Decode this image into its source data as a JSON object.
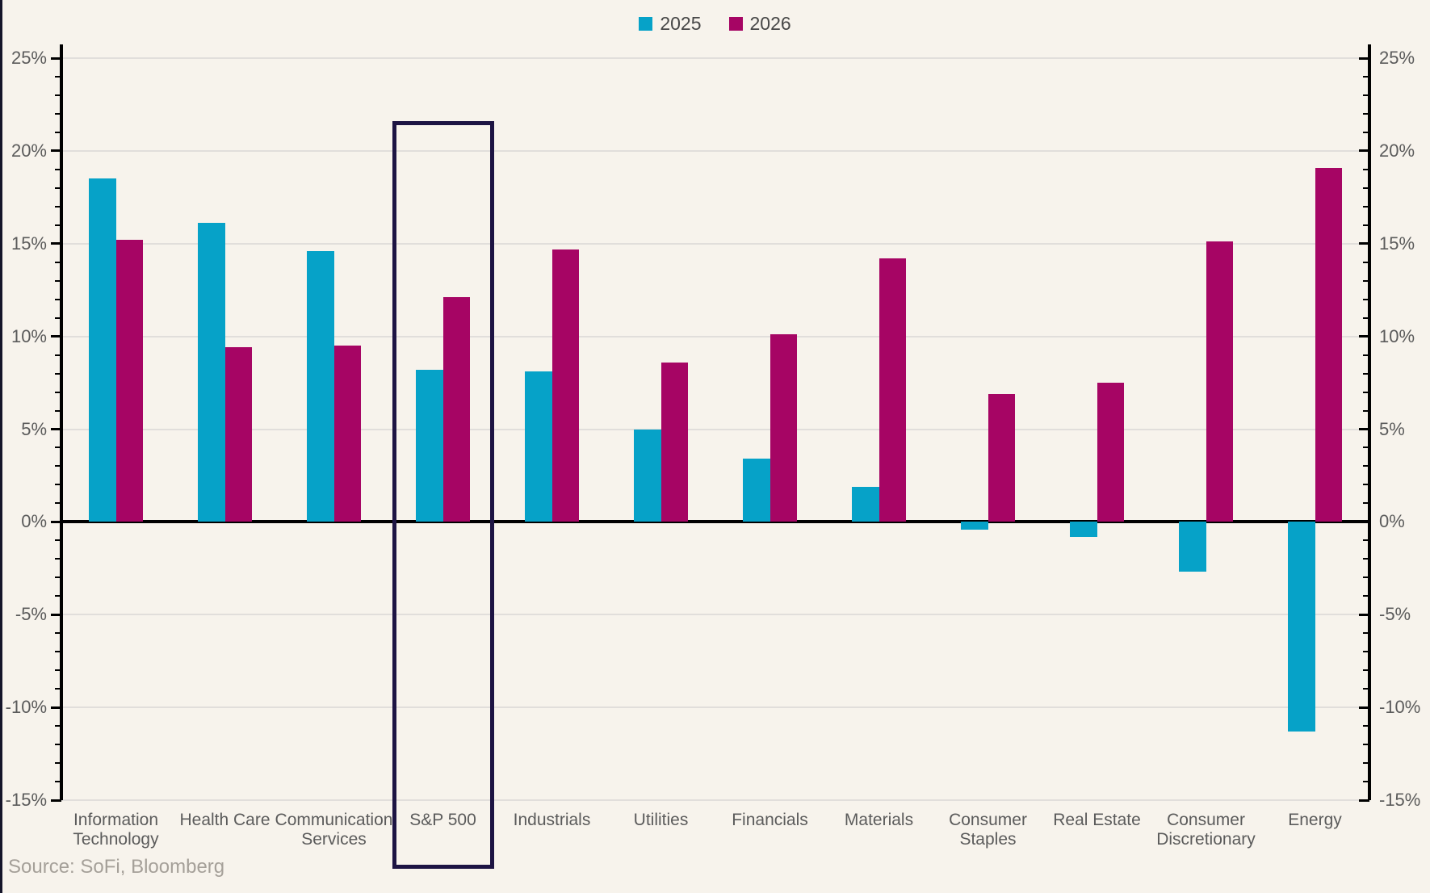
{
  "legend": {
    "items": [
      {
        "label": "2025",
        "color": "#06a2c8"
      },
      {
        "label": "2026",
        "color": "#a60564"
      }
    ]
  },
  "source_text": "Source: SoFi, Bloomberg",
  "colors": {
    "series_2025": "#06a2c8",
    "series_2026": "#a60564",
    "background": "#f7f3ec",
    "gridline": "#e1dedb",
    "axis": "#000000",
    "highlight_box": "#1d1443",
    "tick_label": "#5b5b5b",
    "source_label": "#a5a099"
  },
  "chart_data": {
    "type": "bar",
    "categories": [
      "Information Technology",
      "Health Care",
      "Communication Services",
      "S&P 500",
      "Industrials",
      "Utilities",
      "Financials",
      "Materials",
      "Consumer Staples",
      "Real Estate",
      "Consumer Discretionary",
      "Energy"
    ],
    "category_label_lines": [
      [
        "Information",
        "Technology"
      ],
      [
        "Health Care"
      ],
      [
        "Communication",
        "Services"
      ],
      [
        "S&P 500"
      ],
      [
        "Industrials"
      ],
      [
        "Utilities"
      ],
      [
        "Financials"
      ],
      [
        "Materials"
      ],
      [
        "Consumer",
        "Staples"
      ],
      [
        "Real Estate"
      ],
      [
        "Consumer",
        "Discretionary"
      ],
      [
        "Energy"
      ]
    ],
    "series": [
      {
        "name": "2025",
        "color": "#06a2c8",
        "values": [
          18.5,
          16.1,
          14.6,
          8.2,
          8.1,
          5.0,
          3.4,
          1.9,
          -0.4,
          -0.8,
          -2.7,
          -11.3
        ]
      },
      {
        "name": "2026",
        "color": "#a60564",
        "values": [
          15.2,
          9.4,
          9.5,
          12.1,
          14.7,
          8.6,
          10.1,
          14.2,
          6.9,
          7.5,
          15.1,
          19.1
        ]
      }
    ],
    "title": "",
    "xlabel": "",
    "ylabel": "",
    "ylim": [
      -15,
      25
    ],
    "ytick_step": 5,
    "ytick_minor_step": 1,
    "ytick_suffix": "%",
    "yaxis_sides": "both",
    "grid": true,
    "legend_position": "top-center",
    "highlighted_category": "S&P 500",
    "zero_line": true
  }
}
